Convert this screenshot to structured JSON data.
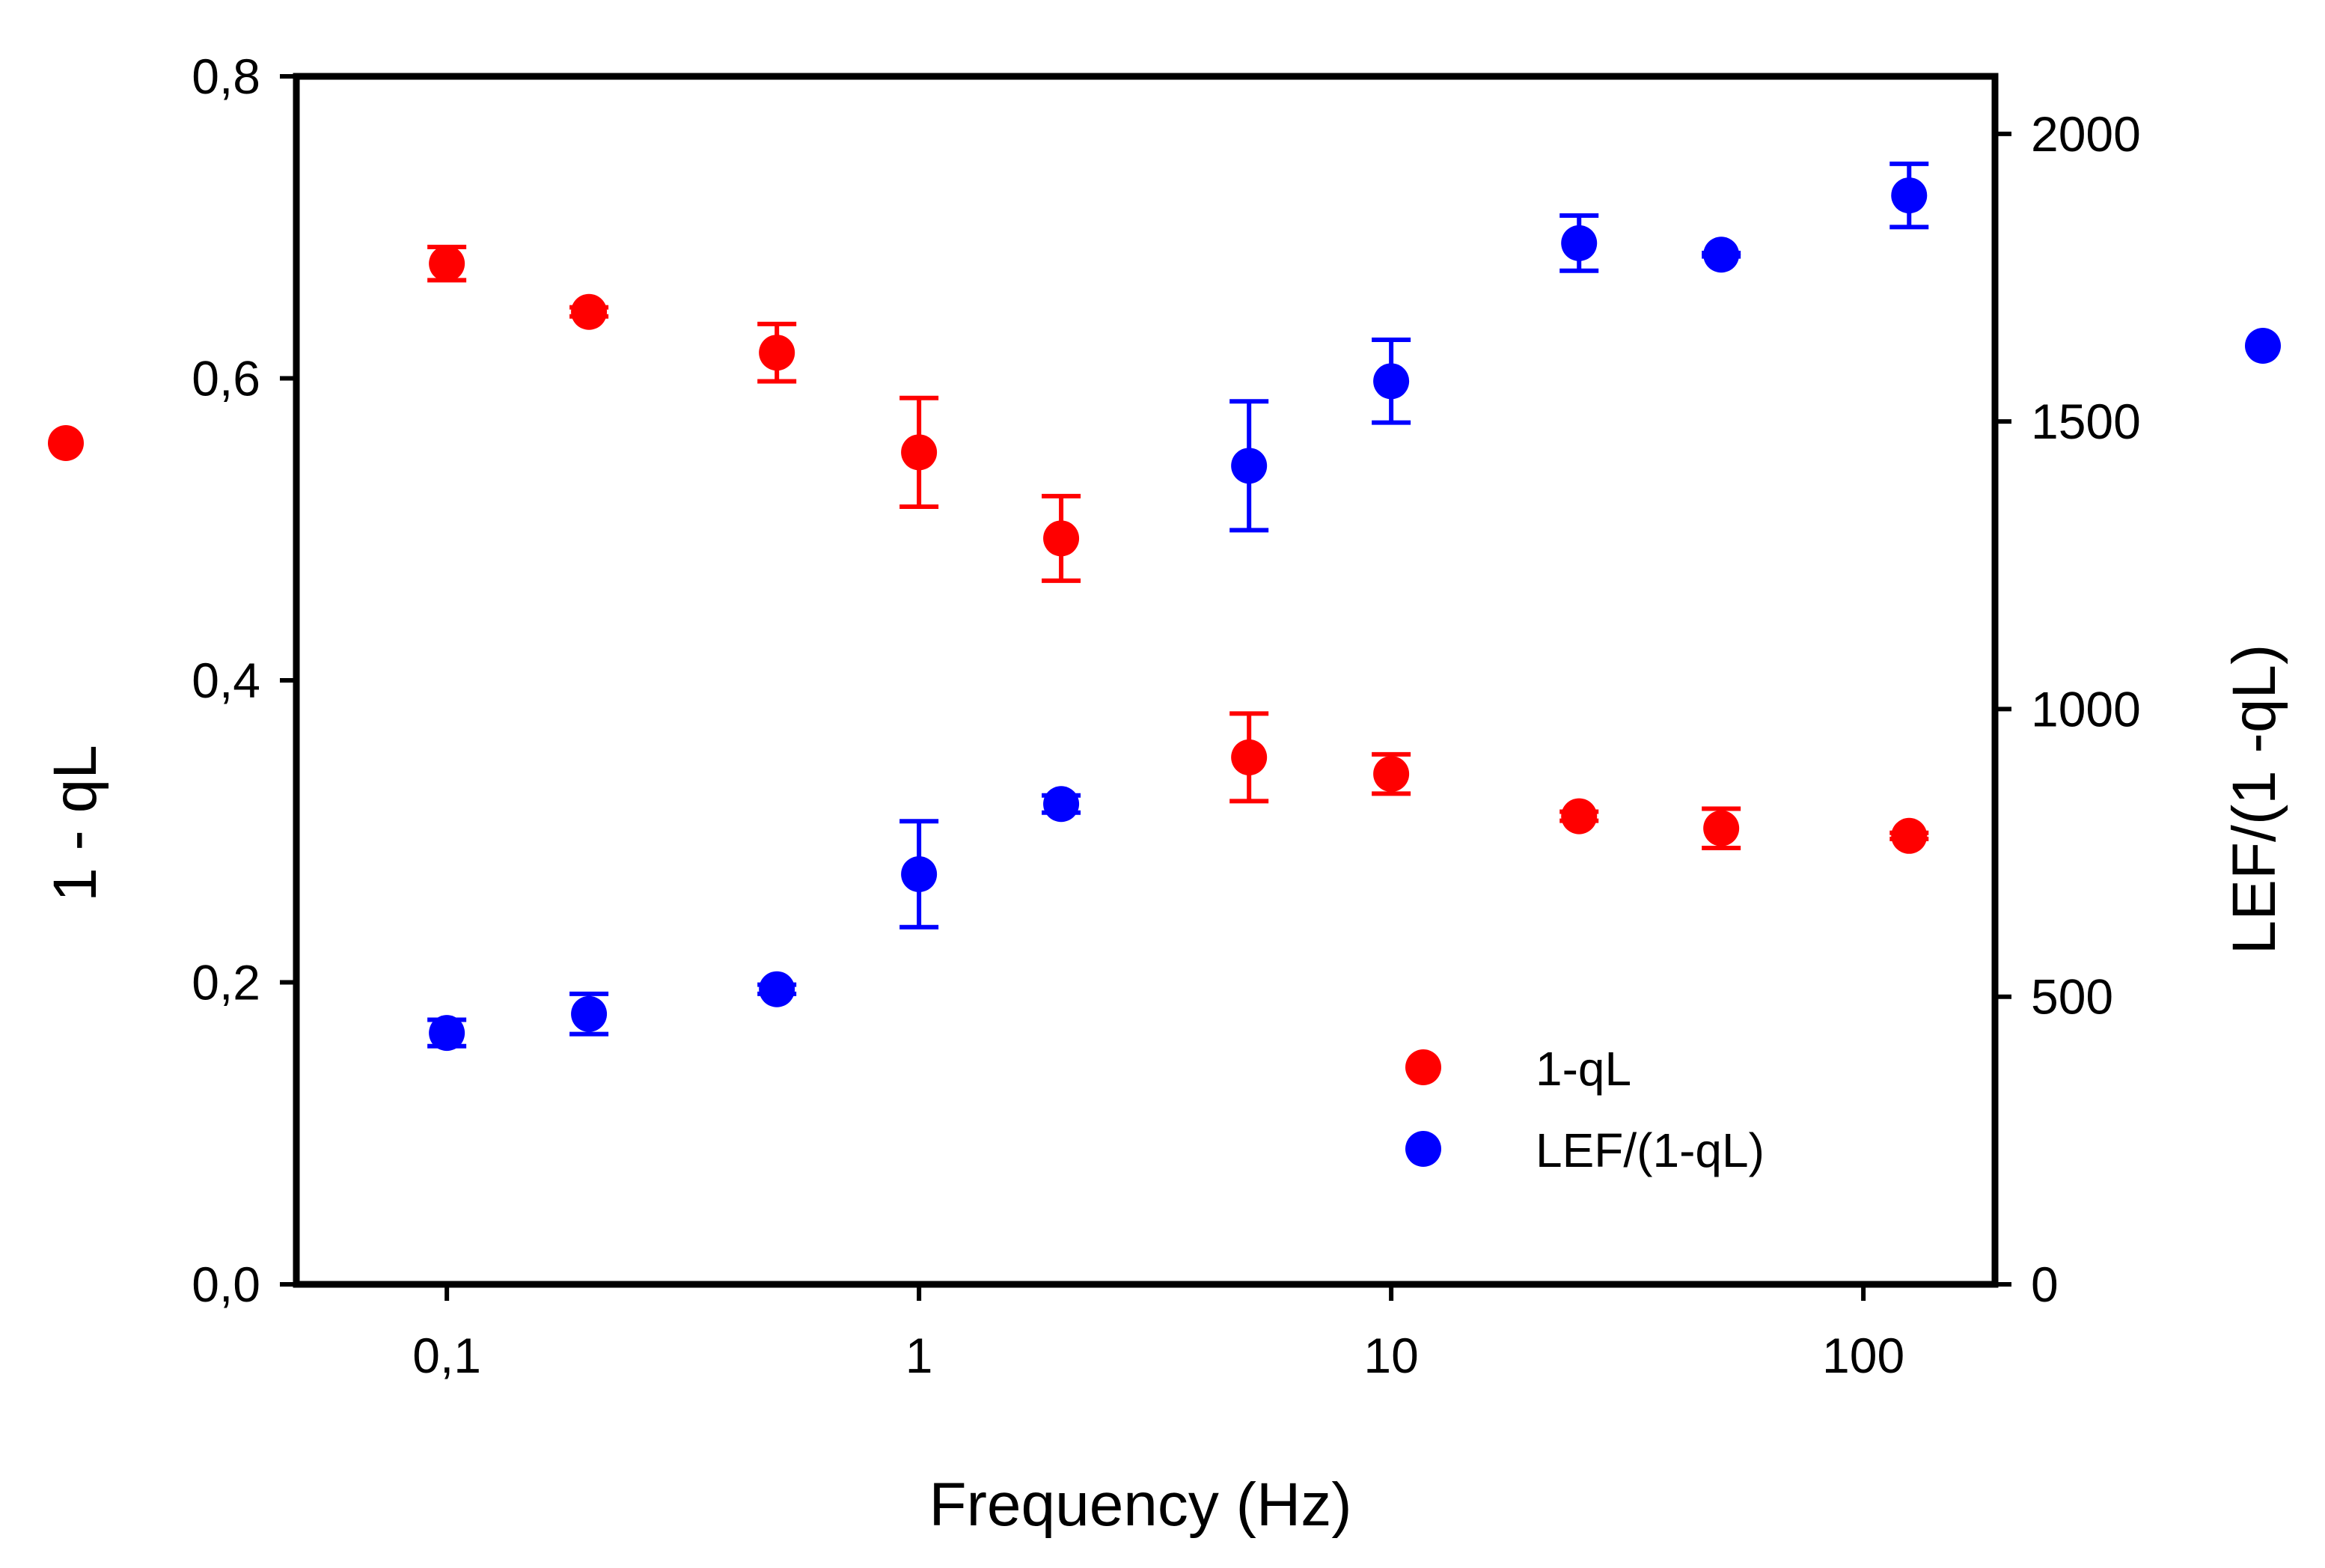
{
  "chart_data": {
    "type": "scatter",
    "xlabel": "Frequency (Hz)",
    "ylabel_left": "1 - qL",
    "ylabel_right": "LEF/(1 -qL)",
    "xscale": "log",
    "xlim": [
      0.048,
      190
    ],
    "ylim_left": [
      0,
      0.8
    ],
    "ylim_right": [
      0,
      2100
    ],
    "x_ticks": [
      0.1,
      1,
      10,
      100
    ],
    "x_tick_labels": [
      "0,1",
      "1",
      "10",
      "100"
    ],
    "y_left_ticks": [
      0,
      0.2,
      0.4,
      0.6,
      0.8
    ],
    "y_left_tick_labels": [
      "0,0",
      "0,2",
      "0,4",
      "0,6",
      "0,8"
    ],
    "y_right_ticks": [
      0,
      500,
      1000,
      1500,
      2000
    ],
    "y_right_tick_labels": [
      "0",
      "500",
      "1000",
      "1500",
      "2000"
    ],
    "legend_position": "lower-right",
    "series": [
      {
        "name": "1-qL",
        "axis": "left",
        "color": "#ff0000",
        "x": [
          0.1,
          0.2,
          0.5,
          1,
          2,
          5,
          10,
          25,
          50,
          125
        ],
        "y": [
          0.676,
          0.644,
          0.617,
          0.551,
          0.494,
          0.349,
          0.338,
          0.31,
          0.302,
          0.297
        ],
        "err": [
          0.011,
          0.003,
          0.019,
          0.036,
          0.028,
          0.029,
          0.013,
          0.003,
          0.013,
          0.002
        ]
      },
      {
        "name": "LEF/(1-qL)",
        "axis": "right",
        "color": "#0000ff",
        "x": [
          0.1,
          0.2,
          0.5,
          1,
          2,
          5,
          10,
          25,
          50,
          125
        ],
        "y": [
          437,
          470,
          513,
          713,
          835,
          1423,
          1570,
          1810,
          1790,
          1893
        ],
        "err": [
          23,
          35,
          8,
          92,
          15,
          112,
          72,
          48,
          3,
          55
        ]
      }
    ],
    "axis_markers": [
      {
        "series": "1-qL",
        "side": "left",
        "color": "#ff0000"
      },
      {
        "series": "LEF/(1-qL)",
        "side": "right",
        "color": "#0000ff"
      }
    ]
  }
}
